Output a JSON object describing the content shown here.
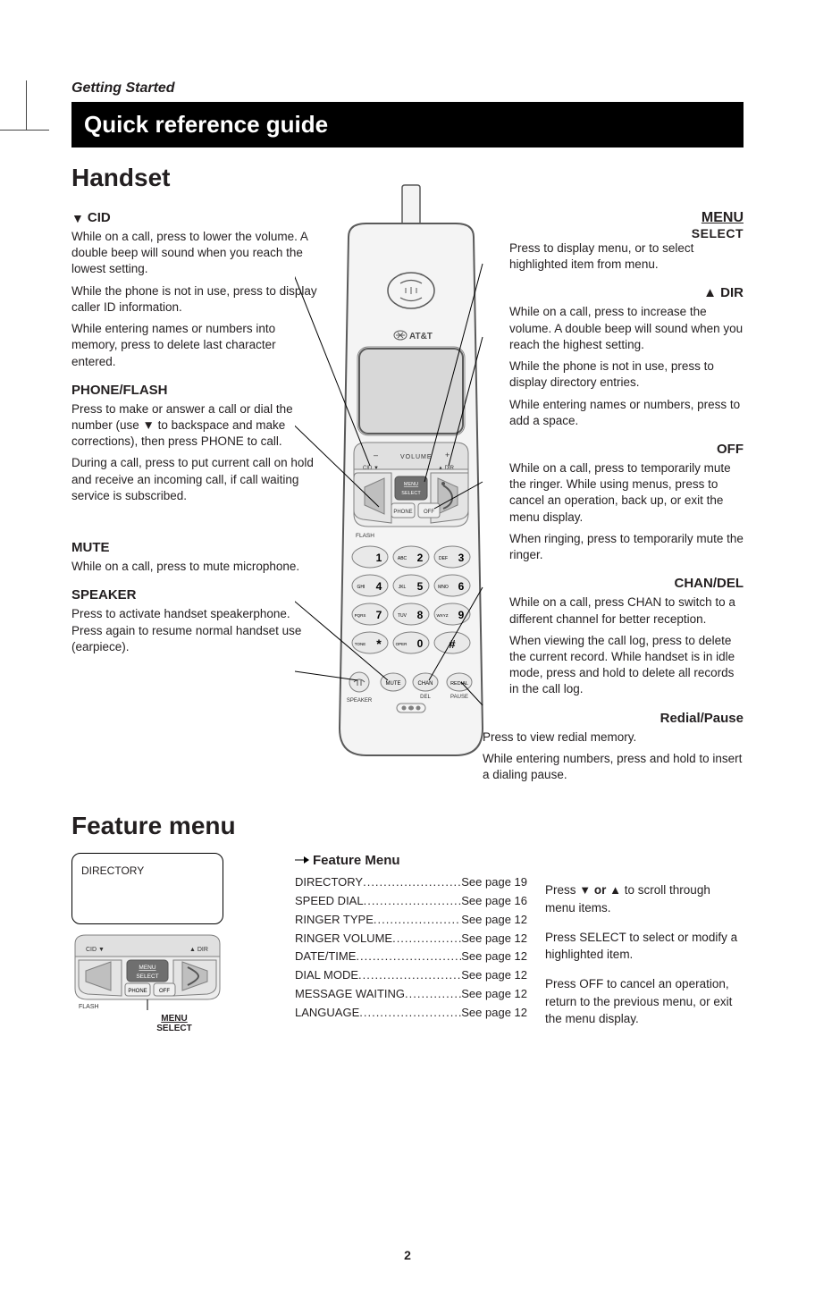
{
  "page_number": "2",
  "section_label": "Getting Started",
  "title_bar": "Quick reference guide",
  "handset_heading": "Handset",
  "feature_menu_heading": "Feature menu",
  "left": {
    "cid": {
      "heading": "CID",
      "p1": "While on a call, press to lower the volume. A double beep will sound when you reach the lowest setting.",
      "p2": "While the phone is not in use, press to display caller ID information.",
      "p3": "While entering names or numbers into memory, press to delete last character entered."
    },
    "phone_flash": {
      "heading": "PHONE/FLASH",
      "p1": "Press to make or answer a call or dial the number (use ▼ to backspace and make corrections), then press PHONE to call.",
      "p2": "During a call, press to put current call on hold and receive an incoming call, if call waiting service is subscribed."
    },
    "mute": {
      "heading": "MUTE",
      "p1": "While on a call, press to mute microphone."
    },
    "speaker": {
      "heading": "SPEAKER",
      "p1": "Press to activate handset speakerphone. Press again to resume normal handset use (earpiece)."
    }
  },
  "right": {
    "menu_select": {
      "menu": "MENU",
      "select": "SELECT",
      "p1": "Press to display menu, or to select highlighted item from menu."
    },
    "dir": {
      "heading": "DIR",
      "p1": "While on a call, press to increase the volume. A double beep will sound when you reach the highest setting.",
      "p2": "While the phone is not in use, press to display directory entries.",
      "p3": "While entering names or numbers, press to add a space."
    },
    "off": {
      "heading": "OFF",
      "p1": "While on a call, press to temporarily mute the ringer. While using menus, press to cancel an operation, back up, or exit the menu display.",
      "p2": "When ringing, press to temporarily mute the ringer."
    },
    "chan_del": {
      "heading": "CHAN/DEL",
      "p1": "While on a call, press CHAN to switch to a different channel for better reception.",
      "p2": "When viewing the call log, press to delete the current record. While handset is in idle mode, press and hold to delete all records in the call log."
    },
    "redial_pause": {
      "heading": "Redial/Pause",
      "p1": "Press to view redial memory.",
      "p2": "While entering numbers, press and hold to insert a dialing pause."
    }
  },
  "feature_menu": {
    "screen_text": "DIRECTORY",
    "heading": "Feature Menu",
    "items": [
      {
        "label": "DIRECTORY",
        "page": "See page 19"
      },
      {
        "label": "SPEED DIAL",
        "page": "See page 16"
      },
      {
        "label": "RINGER TYPE",
        "page": "See page 12"
      },
      {
        "label": "RINGER VOLUME",
        "page": "See page 12"
      },
      {
        "label": "DATE/TIME",
        "page": "See page 12"
      },
      {
        "label": "DIAL MODE",
        "page": "See page 12"
      },
      {
        "label": "MESSAGE WAITING",
        "page": "See page 12"
      },
      {
        "label": "LANGUAGE",
        "page": "See page 12"
      }
    ],
    "instructions": {
      "p1_a": "Press ",
      "p1_b": " or ",
      "p1_c": " to scroll through menu items.",
      "p2": "Press SELECT to select or modify a highlighted item.",
      "p3": "Press OFF to cancel an operation, return to the previous menu, or exit the menu display."
    },
    "keypad_labels": {
      "menu": "MENU",
      "select": "SELECT"
    }
  },
  "phone_diagram": {
    "brand": "AT&T",
    "labels": {
      "volume": "VOLUME",
      "cid": "CID",
      "dir": "DIR",
      "menu": "MENU",
      "select": "SELECT",
      "phone": "PHONE",
      "off": "OFF",
      "flash": "FLASH",
      "mute": "MUTE",
      "chan": "CHAN",
      "del": "DEL",
      "redial": "REDIAL",
      "pause": "PAUSE",
      "speaker": "SPEAKER",
      "tone": "TONE",
      "oper": "OPER"
    },
    "keys": [
      {
        "n": "1",
        "l": ""
      },
      {
        "n": "2",
        "l": "ABC"
      },
      {
        "n": "3",
        "l": "DEF"
      },
      {
        "n": "4",
        "l": "GHI"
      },
      {
        "n": "5",
        "l": "JKL"
      },
      {
        "n": "6",
        "l": "MNO"
      },
      {
        "n": "7",
        "l": "PQRS"
      },
      {
        "n": "8",
        "l": "TUV"
      },
      {
        "n": "9",
        "l": "WXYZ"
      },
      {
        "n": "*",
        "l": ""
      },
      {
        "n": "0",
        "l": "OPER"
      },
      {
        "n": "#",
        "l": ""
      }
    ],
    "colors": {
      "outline": "#5a5a5a",
      "fill": "#f4f4f4",
      "screen": "#d8d8d8",
      "key": "#e9e9e9",
      "keyStroke": "#808080",
      "dark": "#6f6f6f",
      "callout": "#000"
    }
  }
}
